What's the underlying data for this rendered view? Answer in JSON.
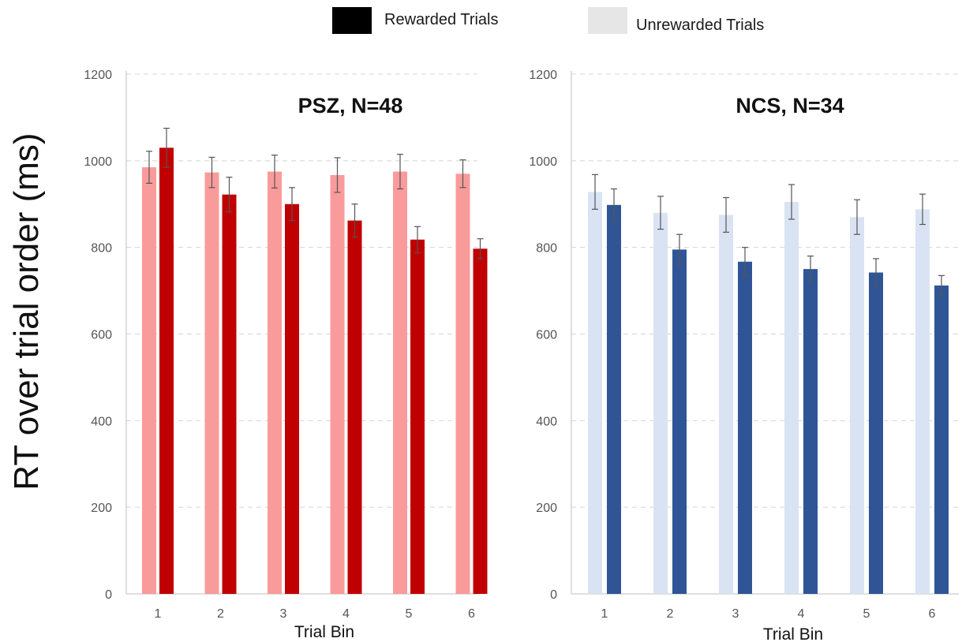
{
  "legend": {
    "rewarded_label": "Rewarded Trials",
    "unrewarded_label": "Unrewarded Trials",
    "rewarded_color": "#000000",
    "unrewarded_color": "#e6e6e6"
  },
  "ylabel": "RT over trial order (ms)",
  "chart_data": [
    {
      "type": "bar",
      "title": "PSZ, N=48",
      "xlabel": "Trial Bin",
      "ylabel": "RT over trial order (ms)",
      "ylim": [
        0,
        1200
      ],
      "yticks": [
        0,
        200,
        400,
        600,
        800,
        1000,
        1200
      ],
      "grid": "horizontal dashed",
      "categories": [
        "1",
        "2",
        "3",
        "4",
        "5",
        "6"
      ],
      "series": [
        {
          "name": "Unrewarded Trials",
          "color": "#f99b9b",
          "values": [
            985,
            973,
            975,
            967,
            975,
            970
          ],
          "errors": [
            37,
            35,
            38,
            40,
            40,
            32
          ]
        },
        {
          "name": "Rewarded Trials",
          "color": "#c00000",
          "values": [
            1030,
            922,
            900,
            862,
            818,
            797
          ],
          "errors": [
            45,
            40,
            38,
            38,
            30,
            23
          ]
        }
      ]
    },
    {
      "type": "bar",
      "title": "NCS, N=34",
      "xlabel": "Trial Bin",
      "ylabel": "RT over trial order (ms)",
      "ylim": [
        0,
        1200
      ],
      "yticks": [
        0,
        200,
        400,
        600,
        800,
        1000,
        1200
      ],
      "grid": "horizontal dashed",
      "categories": [
        "1",
        "2",
        "3",
        "4",
        "5",
        "6"
      ],
      "series": [
        {
          "name": "Unrewarded Trials",
          "color": "#dae3f3",
          "values": [
            928,
            880,
            875,
            905,
            870,
            888
          ],
          "errors": [
            40,
            38,
            40,
            40,
            40,
            35
          ]
        },
        {
          "name": "Rewarded Trials",
          "color": "#2f5597",
          "values": [
            898,
            795,
            767,
            750,
            742,
            712
          ],
          "errors": [
            37,
            35,
            33,
            30,
            32,
            23
          ]
        }
      ]
    }
  ]
}
